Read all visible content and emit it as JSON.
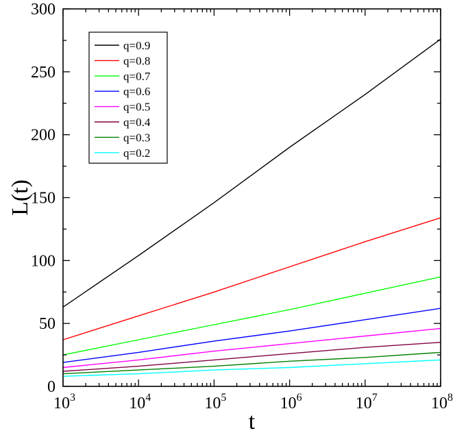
{
  "chart_data": {
    "type": "line",
    "title": "",
    "xlabel": "t",
    "ylabel": "L(t)",
    "x_scale": "log",
    "xlim": [
      1000,
      100000000
    ],
    "ylim": [
      0,
      300
    ],
    "x_ticks": [
      {
        "base": "10",
        "exp": "3",
        "value": 1000
      },
      {
        "base": "10",
        "exp": "4",
        "value": 10000
      },
      {
        "base": "10",
        "exp": "5",
        "value": 100000
      },
      {
        "base": "10",
        "exp": "6",
        "value": 1000000
      },
      {
        "base": "10",
        "exp": "7",
        "value": 10000000
      },
      {
        "base": "10",
        "exp": "8",
        "value": 100000000
      }
    ],
    "y_ticks": [
      0,
      50,
      100,
      150,
      200,
      250,
      300
    ],
    "grid": false,
    "legend_position": "top-left",
    "x": [
      1000,
      10000,
      100000,
      1000000,
      10000000,
      100000000
    ],
    "series": [
      {
        "name": "q=0.9",
        "color": "#000000",
        "values": [
          63,
          104,
          146,
          190,
          232,
          276
        ]
      },
      {
        "name": "q=0.8",
        "color": "#ff0000",
        "values": [
          37,
          56,
          75,
          95,
          115,
          134
        ]
      },
      {
        "name": "q=0.7",
        "color": "#00ff00",
        "values": [
          25,
          37,
          49,
          61,
          74,
          87
        ]
      },
      {
        "name": "q=0.6",
        "color": "#0000ff",
        "values": [
          19,
          27,
          36,
          44,
          53,
          62
        ]
      },
      {
        "name": "q=0.5",
        "color": "#ff00ff",
        "values": [
          15,
          21,
          28,
          34,
          40,
          46
        ]
      },
      {
        "name": "q=0.4",
        "color": "#800040",
        "values": [
          12,
          16,
          21,
          26,
          31,
          35
        ]
      },
      {
        "name": "q=0.3",
        "color": "#008000",
        "values": [
          10,
          13,
          16,
          20,
          23,
          27
        ]
      },
      {
        "name": "q=0.2",
        "color": "#00ffff",
        "values": [
          8,
          10,
          13,
          15,
          18,
          21
        ]
      }
    ]
  }
}
